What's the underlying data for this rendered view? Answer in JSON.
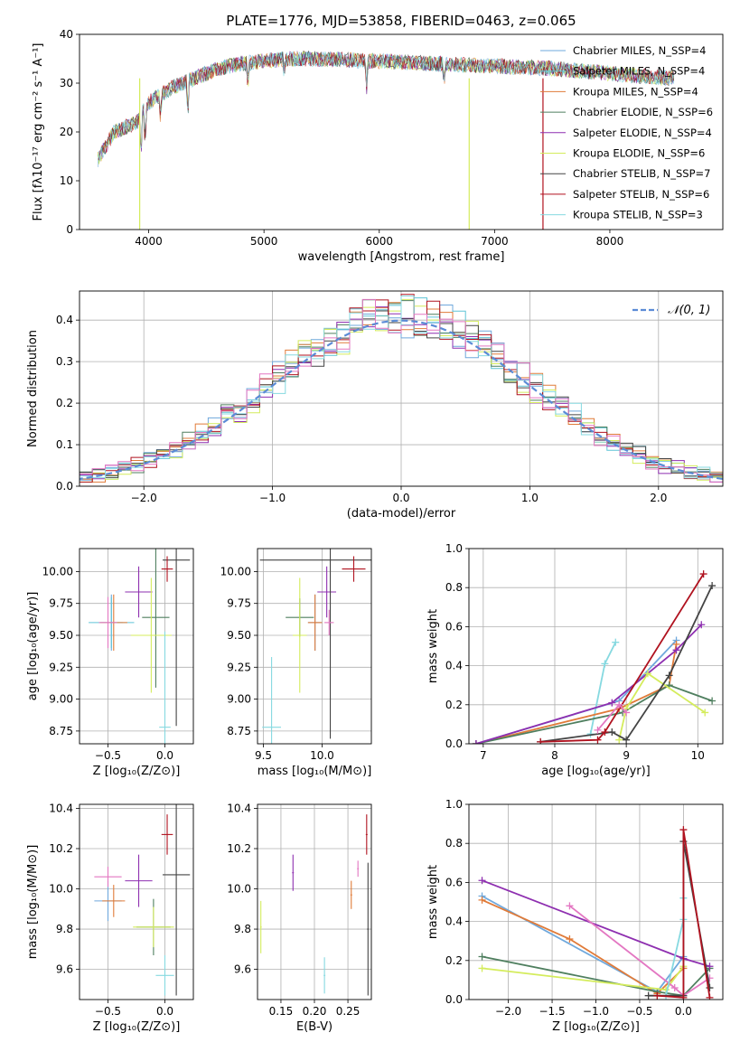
{
  "figure": {
    "title": "PLATE=1776, MJD=53858, FIBERID=0463, z=0.065"
  },
  "chart_data": [
    {
      "id": "spectrum",
      "type": "line",
      "xlabel": "wavelength [Angstrom, rest frame]",
      "ylabel": "Flux [fλ10⁻¹⁷ erg cm⁻² s⁻¹ A⁻¹]",
      "xlim": [
        3400,
        8980
      ],
      "ylim": [
        0,
        40
      ],
      "xticks": [
        4000,
        5000,
        6000,
        7000,
        8000
      ],
      "yticks": [
        0,
        10,
        20,
        30,
        40
      ],
      "legend_position": "right",
      "series": [
        {
          "name": "Chabrier MILES, N_SSP=4",
          "color": "#6fa8dc"
        },
        {
          "name": "Salpeter MILES, N_SSP=4",
          "color": "#5fc4d6"
        },
        {
          "name": "Kroupa MILES, N_SSP=4",
          "color": "#e07b39"
        },
        {
          "name": "Chabrier ELODIE, N_SSP=6",
          "color": "#4f7f5f"
        },
        {
          "name": "Salpeter ELODIE, N_SSP=4",
          "color": "#8e2fb0"
        },
        {
          "name": "Kroupa ELODIE, N_SSP=6",
          "color": "#d4ec5c"
        },
        {
          "name": "Chabrier STELIB, N_SSP=7",
          "color": "#444444"
        },
        {
          "name": "Salpeter STELIB, N_SSP=6",
          "color": "#b0121f"
        },
        {
          "name": "Kroupa STELIB, N_SSP=3",
          "color": "#86d9e0"
        }
      ],
      "continuum": {
        "x": [
          3550,
          3700,
          3900,
          4000,
          4200,
          4400,
          4600,
          4800,
          5000,
          5200,
          5500,
          6000,
          6500,
          7000,
          7500,
          8000,
          8500
        ],
        "y": [
          14,
          20,
          22,
          26,
          29,
          31,
          33,
          34,
          34.5,
          35,
          35,
          34.5,
          34,
          33.5,
          33,
          32,
          31
        ]
      }
    },
    {
      "id": "residuals",
      "type": "line",
      "xlabel": "(data-model)/error",
      "ylabel": "Normed distribution",
      "xlim": [
        -2.5,
        2.5
      ],
      "ylim": [
        0,
        0.47
      ],
      "xticks": [
        -2,
        -1,
        0,
        1,
        2
      ],
      "yticks": [
        0.0,
        0.1,
        0.2,
        0.3,
        0.4
      ],
      "grid": true,
      "legend": "𝒩(0, 1)",
      "legend_position": "top-right",
      "gaussian": {
        "mean": 0,
        "sigma": 1,
        "color": "#5b8bd6"
      }
    },
    {
      "id": "age-vs-Z",
      "type": "scatter",
      "xlabel": "Z [log₁₀(Z/Z⊙)]",
      "ylabel": "age  [log₁₀(age/yr)]",
      "xlim": [
        -0.75,
        0.25
      ],
      "ylim": [
        8.65,
        10.18
      ],
      "xticks": [
        -0.5,
        0.0
      ],
      "yticks": [
        8.75,
        9.0,
        9.25,
        9.5,
        9.75,
        10.0
      ],
      "grid": true,
      "points": [
        {
          "x": -0.47,
          "y": 9.6,
          "xerr": 0.1,
          "yerr": 0.22,
          "color": "#6fa8dc"
        },
        {
          "x": -0.47,
          "y": 9.6,
          "xerr": 0.2,
          "yerr": 0.2,
          "color": "#5fc4d6"
        },
        {
          "x": -0.45,
          "y": 9.6,
          "xerr": 0.12,
          "yerr": 0.22,
          "color": "#e07b39"
        },
        {
          "x": -0.08,
          "y": 9.64,
          "xerr": 0.12,
          "yerr": 0.55,
          "color": "#4f7f5f"
        },
        {
          "x": -0.23,
          "y": 9.84,
          "xerr": 0.12,
          "yerr": 0.2,
          "color": "#8e2fb0"
        },
        {
          "x": -0.12,
          "y": 9.5,
          "xerr": 0.18,
          "yerr": 0.45,
          "color": "#d4ec5c"
        },
        {
          "x": 0.1,
          "y": 10.09,
          "xerr": 0.12,
          "yerr": 1.3,
          "color": "#444444"
        },
        {
          "x": 0.02,
          "y": 10.02,
          "xerr": 0.05,
          "yerr": 0.1,
          "color": "#b0121f"
        },
        {
          "x": 0.0,
          "y": 8.78,
          "xerr": 0.05,
          "yerr": 0.75,
          "color": "#86d9e0"
        },
        {
          "x": -0.5,
          "y": 9.6,
          "xerr": 0.08,
          "yerr": 0.2,
          "color": "#e377c2"
        }
      ]
    },
    {
      "id": "age-vs-mass",
      "type": "scatter",
      "xlabel": "mass [log₁₀(M/M⊙)]",
      "ylabel": "",
      "xlim": [
        9.45,
        10.42
      ],
      "ylim": [
        8.65,
        10.18
      ],
      "xticks": [
        9.5,
        10.0
      ],
      "yticks": [
        8.75,
        9.0,
        9.25,
        9.5,
        9.75,
        10.0
      ],
      "grid": true,
      "points": [
        {
          "x": 9.94,
          "y": 9.6,
          "xerr": 0.06,
          "yerr": 0.22,
          "color": "#6fa8dc"
        },
        {
          "x": 9.57,
          "y": 8.78,
          "xerr": 0.08,
          "yerr": 0.55,
          "color": "#86d9e0"
        },
        {
          "x": 9.94,
          "y": 9.6,
          "xerr": 0.06,
          "yerr": 0.22,
          "color": "#e07b39"
        },
        {
          "x": 9.81,
          "y": 9.64,
          "xerr": 0.12,
          "yerr": 0.15,
          "color": "#4f7f5f"
        },
        {
          "x": 10.04,
          "y": 9.84,
          "xerr": 0.08,
          "yerr": 0.2,
          "color": "#8e2fb0"
        },
        {
          "x": 9.81,
          "y": 9.5,
          "xerr": 0.06,
          "yerr": 0.45,
          "color": "#d4ec5c"
        },
        {
          "x": 10.07,
          "y": 10.09,
          "xerr": 0.6,
          "yerr": 1.4,
          "color": "#444444"
        },
        {
          "x": 10.27,
          "y": 10.02,
          "xerr": 0.1,
          "yerr": 0.1,
          "color": "#b0121f"
        },
        {
          "x": 10.06,
          "y": 9.6,
          "xerr": 0.04,
          "yerr": 0.1,
          "color": "#e377c2"
        }
      ]
    },
    {
      "id": "weight-vs-age",
      "type": "line",
      "xlabel": "age  [log₁₀(age/yr)]",
      "ylabel": "mass weight",
      "xlim": [
        6.8,
        10.35
      ],
      "ylim": [
        0,
        1.0
      ],
      "xticks": [
        7,
        8,
        9,
        10
      ],
      "yticks": [
        0.0,
        0.2,
        0.4,
        0.6,
        0.8,
        1.0
      ],
      "grid": true,
      "series": [
        {
          "color": "#86d9e0",
          "x": [
            8.5,
            8.7,
            8.85
          ],
          "y": [
            0.05,
            0.41,
            0.52
          ]
        },
        {
          "color": "#6fa8dc",
          "x": [
            6.9,
            8.9,
            9.7
          ],
          "y": [
            0.0,
            0.22,
            0.53
          ]
        },
        {
          "color": "#e07b39",
          "x": [
            6.9,
            8.9,
            9.6,
            9.7
          ],
          "y": [
            0.0,
            0.18,
            0.3,
            0.51
          ]
        },
        {
          "color": "#4f7f5f",
          "x": [
            6.9,
            8.95,
            9.6,
            10.2
          ],
          "y": [
            0.0,
            0.16,
            0.3,
            0.22
          ]
        },
        {
          "color": "#8e2fb0",
          "x": [
            6.9,
            8.8,
            9.7,
            10.05
          ],
          "y": [
            0.0,
            0.21,
            0.48,
            0.61
          ]
        },
        {
          "color": "#d4ec5c",
          "x": [
            8.9,
            9.0,
            9.3,
            10.1
          ],
          "y": [
            0.02,
            0.18,
            0.36,
            0.16
          ]
        },
        {
          "color": "#444444",
          "x": [
            7.8,
            8.8,
            9.0,
            9.6,
            10.2
          ],
          "y": [
            0.01,
            0.06,
            0.02,
            0.35,
            0.81
          ]
        },
        {
          "color": "#b0121f",
          "x": [
            7.8,
            8.6,
            8.7,
            10.08
          ],
          "y": [
            0.01,
            0.02,
            0.06,
            0.87
          ]
        },
        {
          "color": "#e377c2",
          "x": [
            8.6,
            8.9,
            9.0
          ],
          "y": [
            0.07,
            0.2,
            0.16
          ]
        }
      ]
    },
    {
      "id": "mass-vs-Z",
      "type": "scatter",
      "xlabel": "Z [log₁₀(Z/Z⊙)]",
      "ylabel": "mass [log₁₀(M/M⊙)]",
      "xlim": [
        -0.75,
        0.25
      ],
      "ylim": [
        9.45,
        10.42
      ],
      "xticks": [
        -0.5,
        0.0
      ],
      "yticks": [
        9.6,
        9.8,
        10.0,
        10.2,
        10.4
      ],
      "grid": true,
      "points": [
        {
          "x": -0.5,
          "y": 9.94,
          "xerr": 0.12,
          "yerr": 0.1,
          "color": "#6fa8dc"
        },
        {
          "x": 0.0,
          "y": 9.57,
          "xerr": 0.08,
          "yerr": 0.1,
          "color": "#86d9e0"
        },
        {
          "x": -0.45,
          "y": 9.94,
          "xerr": 0.1,
          "yerr": 0.08,
          "color": "#e07b39"
        },
        {
          "x": -0.1,
          "y": 9.81,
          "xerr": 0.15,
          "yerr": 0.14,
          "color": "#4f7f5f"
        },
        {
          "x": -0.23,
          "y": 10.04,
          "xerr": 0.12,
          "yerr": 0.13,
          "color": "#8e2fb0"
        },
        {
          "x": -0.1,
          "y": 9.81,
          "xerr": 0.18,
          "yerr": 0.1,
          "color": "#d4ec5c"
        },
        {
          "x": 0.1,
          "y": 10.07,
          "xerr": 0.12,
          "yerr": 0.6,
          "color": "#444444"
        },
        {
          "x": 0.02,
          "y": 10.27,
          "xerr": 0.05,
          "yerr": 0.1,
          "color": "#b0121f"
        },
        {
          "x": -0.5,
          "y": 10.06,
          "xerr": 0.12,
          "yerr": 0.05,
          "color": "#e377c2"
        }
      ]
    },
    {
      "id": "mass-vs-EBV",
      "type": "scatter",
      "xlabel": "E(B-V)",
      "ylabel": "",
      "xlim": [
        0.115,
        0.285
      ],
      "ylim": [
        9.45,
        10.42
      ],
      "xticks": [
        0.15,
        0.2,
        0.25
      ],
      "yticks": [
        9.6,
        9.8,
        10.0,
        10.2,
        10.4
      ],
      "grid": true,
      "points": [
        {
          "x": 0.12,
          "y": 9.81,
          "xerr": 0,
          "yerr": 0.13,
          "color": "#d4ec5c"
        },
        {
          "x": 0.168,
          "y": 10.08,
          "xerr": 0,
          "yerr": 0.09,
          "color": "#8e2fb0"
        },
        {
          "x": 0.215,
          "y": 9.57,
          "xerr": 0,
          "yerr": 0.09,
          "color": "#86d9e0"
        },
        {
          "x": 0.255,
          "y": 9.97,
          "xerr": 0,
          "yerr": 0.07,
          "color": "#e07b39"
        },
        {
          "x": 0.265,
          "y": 10.1,
          "xerr": 0,
          "yerr": 0.04,
          "color": "#e377c2"
        },
        {
          "x": 0.278,
          "y": 10.27,
          "xerr": 0,
          "yerr": 0.1,
          "color": "#b0121f"
        },
        {
          "x": 0.28,
          "y": 9.8,
          "xerr": 0,
          "yerr": 0.33,
          "color": "#444444"
        }
      ]
    },
    {
      "id": "weight-vs-Z",
      "type": "line",
      "xlabel": "Z [log₁₀(Z/Z⊙)]",
      "ylabel": "mass weight",
      "xlim": [
        -2.45,
        0.45
      ],
      "ylim": [
        0,
        1.0
      ],
      "xticks": [
        -2.0,
        -1.5,
        -1.0,
        -0.5,
        0.0
      ],
      "yticks": [
        0.0,
        0.2,
        0.4,
        0.6,
        0.8,
        1.0
      ],
      "grid": true,
      "series": [
        {
          "color": "#6fa8dc",
          "x": [
            -2.3,
            -0.3,
            0.0
          ],
          "y": [
            0.53,
            0.04,
            0.22
          ]
        },
        {
          "color": "#e07b39",
          "x": [
            -2.3,
            -1.3,
            -0.3,
            0.0
          ],
          "y": [
            0.51,
            0.31,
            0.03,
            0.16
          ]
        },
        {
          "color": "#4f7f5f",
          "x": [
            -2.3,
            -0.3,
            0.0,
            0.3
          ],
          "y": [
            0.22,
            0.04,
            0.02,
            0.16
          ]
        },
        {
          "color": "#8e2fb0",
          "x": [
            -2.3,
            0.0,
            0.3
          ],
          "y": [
            0.61,
            0.21,
            0.17
          ]
        },
        {
          "color": "#d4ec5c",
          "x": [
            -2.3,
            -0.2,
            0.0
          ],
          "y": [
            0.16,
            0.05,
            0.17
          ]
        },
        {
          "color": "#e377c2",
          "x": [
            -1.3,
            -0.1,
            0.0,
            0.3
          ],
          "y": [
            0.48,
            0.06,
            0.02,
            0.11
          ]
        },
        {
          "color": "#86d9e0",
          "x": [
            -0.2,
            0.0,
            0.0
          ],
          "y": [
            0.02,
            0.41,
            0.52
          ]
        },
        {
          "color": "#444444",
          "x": [
            -0.4,
            0.0,
            0.0,
            0.3
          ],
          "y": [
            0.02,
            0.02,
            0.81,
            0.06
          ]
        },
        {
          "color": "#b0121f",
          "x": [
            -0.3,
            0.0,
            0.0,
            0.3
          ],
          "y": [
            0.02,
            0.01,
            0.87,
            0.01
          ]
        }
      ]
    }
  ]
}
